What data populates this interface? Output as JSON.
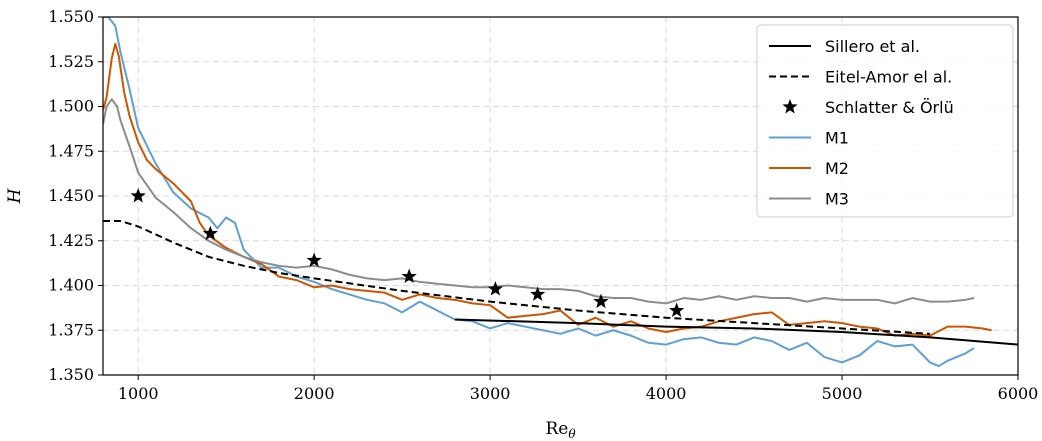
{
  "chart_data": {
    "type": "line",
    "title": "",
    "xlabel": "Re_θ",
    "xlabel_main": "Re",
    "xlabel_sub": "θ",
    "ylabel": "H",
    "xlim": [
      800,
      6000
    ],
    "ylim": [
      1.35,
      1.55
    ],
    "xticks": [
      1000,
      2000,
      3000,
      4000,
      5000,
      6000
    ],
    "yticks": [
      1.35,
      1.375,
      1.4,
      1.425,
      1.45,
      1.475,
      1.5,
      1.525,
      1.55
    ],
    "grid": true,
    "legend_position": "top-right",
    "series": [
      {
        "name": "Sillero et al.",
        "style": "solid",
        "color": "#000000",
        "x": [
          2800,
          3500,
          4000,
          4500,
          5000,
          5500,
          6000
        ],
        "y": [
          1.381,
          1.379,
          1.377,
          1.376,
          1.374,
          1.371,
          1.367
        ]
      },
      {
        "name": "Eitel-Amor el al.",
        "style": "dashed",
        "color": "#000000",
        "x": [
          800,
          900,
          1000,
          1200,
          1400,
          1600,
          1800,
          2000,
          2500,
          3000,
          3500,
          4000,
          4500,
          5000,
          5500
        ],
        "y": [
          1.436,
          1.436,
          1.433,
          1.424,
          1.416,
          1.411,
          1.407,
          1.404,
          1.397,
          1.391,
          1.386,
          1.382,
          1.379,
          1.376,
          1.373
        ]
      },
      {
        "name": "Schlatter & Örlü",
        "style": "marker",
        "color": "#000000",
        "x": [
          1000,
          1410,
          2000,
          2540,
          3030,
          3270,
          3630,
          4060
        ],
        "y": [
          1.45,
          1.429,
          1.414,
          1.405,
          1.398,
          1.395,
          1.391,
          1.386
        ]
      },
      {
        "name": "M1",
        "style": "solid",
        "color": "#5fa0d1",
        "x": [
          800,
          830,
          870,
          900,
          950,
          1000,
          1100,
          1200,
          1300,
          1400,
          1450,
          1500,
          1550,
          1600,
          1700,
          1800,
          1900,
          2000,
          2100,
          2200,
          2300,
          2400,
          2500,
          2600,
          2700,
          2800,
          2900,
          3000,
          3100,
          3200,
          3300,
          3400,
          3500,
          3600,
          3700,
          3800,
          3900,
          4000,
          4100,
          4200,
          4300,
          4400,
          4500,
          4600,
          4700,
          4800,
          4900,
          5000,
          5100,
          5200,
          5300,
          5400,
          5500,
          5550,
          5600,
          5700,
          5750
        ],
        "y": [
          1.55,
          1.55,
          1.545,
          1.53,
          1.51,
          1.488,
          1.468,
          1.452,
          1.443,
          1.438,
          1.432,
          1.438,
          1.435,
          1.42,
          1.41,
          1.41,
          1.405,
          1.402,
          1.398,
          1.395,
          1.392,
          1.39,
          1.385,
          1.391,
          1.386,
          1.381,
          1.38,
          1.376,
          1.379,
          1.377,
          1.375,
          1.373,
          1.376,
          1.372,
          1.375,
          1.372,
          1.368,
          1.367,
          1.37,
          1.371,
          1.368,
          1.367,
          1.371,
          1.369,
          1.364,
          1.368,
          1.36,
          1.357,
          1.361,
          1.369,
          1.366,
          1.367,
          1.357,
          1.355,
          1.358,
          1.362,
          1.365
        ]
      },
      {
        "name": "M2",
        "style": "solid",
        "color": "#cc5500",
        "x": [
          800,
          820,
          850,
          870,
          890,
          920,
          950,
          1000,
          1050,
          1100,
          1200,
          1300,
          1350,
          1400,
          1500,
          1600,
          1700,
          1800,
          1900,
          2000,
          2100,
          2200,
          2300,
          2400,
          2500,
          2600,
          2700,
          2800,
          2900,
          3000,
          3100,
          3200,
          3300,
          3400,
          3500,
          3600,
          3700,
          3800,
          3900,
          4000,
          4100,
          4200,
          4300,
          4400,
          4500,
          4600,
          4700,
          4800,
          4900,
          5000,
          5100,
          5200,
          5300,
          5400,
          5500,
          5600,
          5700,
          5800,
          5850
        ],
        "y": [
          1.498,
          1.505,
          1.527,
          1.535,
          1.528,
          1.508,
          1.495,
          1.48,
          1.47,
          1.465,
          1.457,
          1.447,
          1.435,
          1.428,
          1.421,
          1.416,
          1.412,
          1.405,
          1.403,
          1.399,
          1.4,
          1.398,
          1.397,
          1.396,
          1.392,
          1.395,
          1.393,
          1.392,
          1.39,
          1.389,
          1.382,
          1.383,
          1.384,
          1.386,
          1.378,
          1.382,
          1.377,
          1.38,
          1.376,
          1.374,
          1.376,
          1.377,
          1.38,
          1.382,
          1.384,
          1.385,
          1.378,
          1.379,
          1.38,
          1.379,
          1.377,
          1.376,
          1.372,
          1.373,
          1.372,
          1.377,
          1.377,
          1.376,
          1.375
        ]
      },
      {
        "name": "M3",
        "style": "solid",
        "color": "#8c8c8c",
        "x": [
          800,
          820,
          850,
          880,
          900,
          950,
          1000,
          1100,
          1200,
          1300,
          1400,
          1500,
          1600,
          1700,
          1800,
          1900,
          2000,
          2100,
          2200,
          2300,
          2400,
          2500,
          2600,
          2700,
          2800,
          2900,
          3000,
          3100,
          3200,
          3300,
          3400,
          3500,
          3600,
          3700,
          3800,
          3900,
          4000,
          4100,
          4200,
          4300,
          4400,
          4500,
          4600,
          4700,
          4800,
          4900,
          5000,
          5100,
          5200,
          5300,
          5400,
          5500,
          5600,
          5700,
          5750
        ],
        "y": [
          1.49,
          1.5,
          1.504,
          1.5,
          1.492,
          1.478,
          1.463,
          1.449,
          1.441,
          1.432,
          1.425,
          1.42,
          1.416,
          1.413,
          1.411,
          1.41,
          1.411,
          1.409,
          1.406,
          1.404,
          1.403,
          1.404,
          1.402,
          1.401,
          1.4,
          1.399,
          1.399,
          1.4,
          1.399,
          1.398,
          1.398,
          1.397,
          1.394,
          1.393,
          1.393,
          1.391,
          1.39,
          1.393,
          1.392,
          1.394,
          1.392,
          1.394,
          1.393,
          1.393,
          1.391,
          1.393,
          1.392,
          1.392,
          1.392,
          1.39,
          1.393,
          1.391,
          1.391,
          1.392,
          1.393
        ]
      }
    ]
  }
}
